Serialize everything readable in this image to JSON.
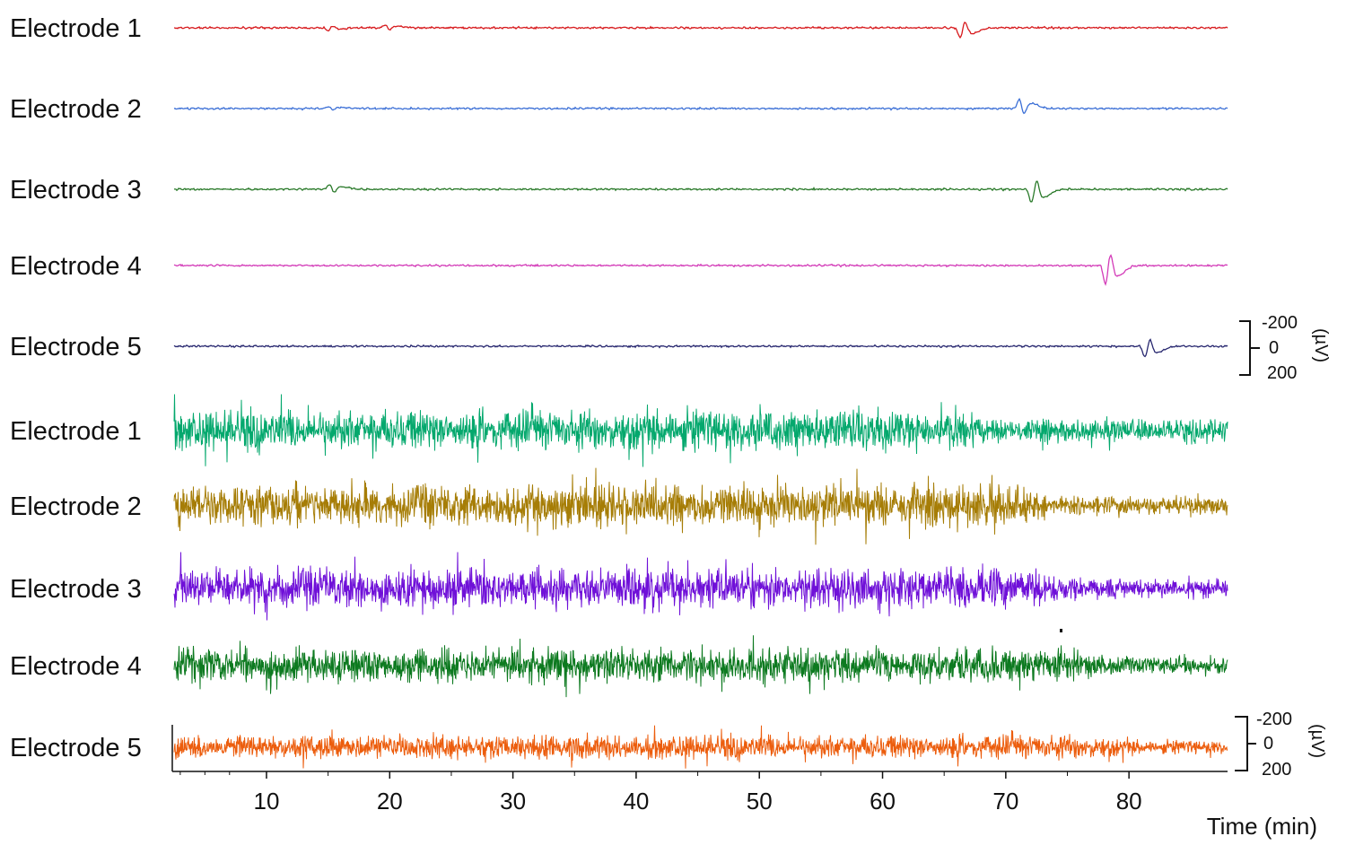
{
  "chart_data": {
    "type": "line",
    "xlabel": "Time (min)",
    "xlim": [
      2.5,
      88
    ],
    "x_ticks": [
      10,
      20,
      30,
      40,
      50,
      60,
      70,
      80
    ],
    "x_tick_labels": [
      "10",
      "20",
      "30",
      "40",
      "50",
      "60",
      "70",
      "80"
    ],
    "scale_bar": {
      "labels": [
        "-200",
        "0",
        "200"
      ],
      "unit": "(µV)",
      "values": [
        -200,
        0,
        200
      ]
    },
    "top_panel": {
      "series": [
        {
          "name": "Electrode 1",
          "color": "#d7191c",
          "events": [
            {
              "t": 15.2,
              "amp": -0.25
            },
            {
              "t": 19.8,
              "amp": 0.3
            },
            {
              "t": 66.5,
              "amp": -1.0
            }
          ]
        },
        {
          "name": "Electrode 2",
          "color": "#3b6fd6",
          "events": [
            {
              "t": 15.2,
              "amp": 0.2
            },
            {
              "t": 71.3,
              "amp": 0.9
            }
          ]
        },
        {
          "name": "Electrode 3",
          "color": "#2a7a2a",
          "events": [
            {
              "t": 15.3,
              "amp": 0.45
            },
            {
              "t": 72.3,
              "amp": -1.4
            }
          ]
        },
        {
          "name": "Electrode 4",
          "color": "#d33bb8",
          "events": [
            {
              "t": 78.3,
              "amp": -1.9
            }
          ]
        },
        {
          "name": "Electrode 5",
          "color": "#27276f",
          "events": [
            {
              "t": 81.5,
              "amp": -1.1
            }
          ]
        }
      ]
    },
    "bottom_panel": {
      "series": [
        {
          "name": "Electrode 1",
          "color": "#04a86d",
          "amplitude_before": 1.0,
          "amplitude_after": 0.55,
          "transition_t": 67.5
        },
        {
          "name": "Electrode 2",
          "color": "#a67d06",
          "amplitude_before": 1.0,
          "amplitude_after": 0.45,
          "transition_t": 72.0
        },
        {
          "name": "Electrode 3",
          "color": "#6f10d8",
          "amplitude_before": 1.0,
          "amplitude_after": 0.5,
          "transition_t": 74.0
        },
        {
          "name": "Electrode 4",
          "color": "#0d7a20",
          "amplitude_before": 1.0,
          "amplitude_after": 0.5,
          "transition_t": 76.5
        },
        {
          "name": "Electrode 5",
          "color": "#ec5d0d",
          "amplitude_before": 1.0,
          "amplitude_after": 0.55,
          "transition_t": 79.0
        }
      ]
    }
  }
}
